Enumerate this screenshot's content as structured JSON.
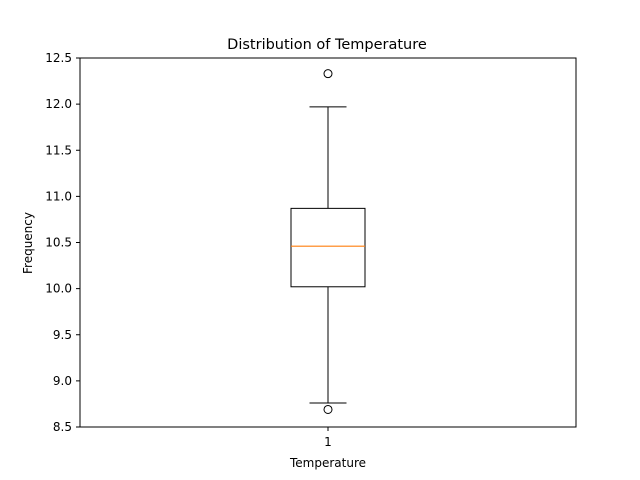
{
  "chart_data": {
    "type": "box",
    "title": "Distribution of Temperature",
    "xlabel": "Temperature",
    "ylabel": "Frequency",
    "ylim": [
      8.5,
      12.5
    ],
    "yticks": [
      8.5,
      9.0,
      9.5,
      10.0,
      10.5,
      11.0,
      11.5,
      12.0,
      12.5
    ],
    "ytick_labels": [
      "8.5",
      "9.0",
      "9.5",
      "10.0",
      "10.5",
      "11.0",
      "11.5",
      "12.0",
      "12.5"
    ],
    "categories": [
      "1"
    ],
    "boxes": [
      {
        "label": "1",
        "whisker_low": 8.76,
        "q1": 10.02,
        "median": 10.46,
        "q3": 10.87,
        "whisker_high": 11.97,
        "outliers": [
          12.33,
          8.69
        ]
      }
    ],
    "grid": false,
    "colors": {
      "box": "#000000",
      "median": "#ff7f0e",
      "outlier": "#000000"
    }
  }
}
